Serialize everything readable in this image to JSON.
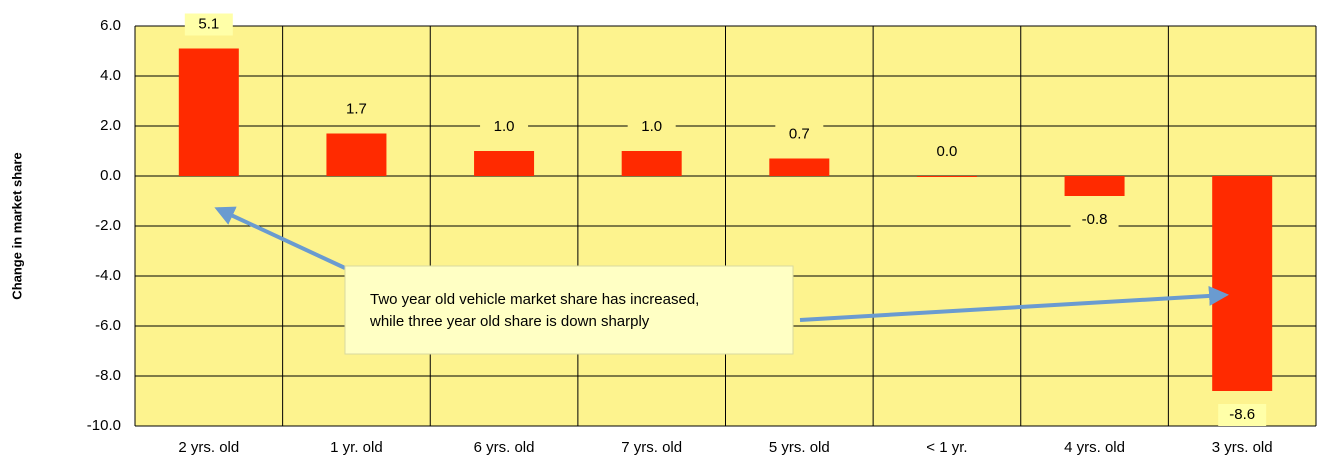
{
  "chart_data": {
    "type": "bar",
    "y_label": "Change in market share",
    "categories": [
      "2 yrs. old",
      "1 yr. old",
      "6 yrs. old",
      "7 yrs. old",
      "5 yrs. old",
      "< 1 yr.",
      "4 yrs. old",
      "3 yrs. old"
    ],
    "values": [
      5.1,
      1.7,
      1.0,
      1.0,
      0.7,
      0.0,
      -0.8,
      -8.6
    ],
    "value_labels": [
      "5.1",
      "1.7",
      "1.0",
      "1.0",
      "0.7",
      "0.0",
      "-0.8",
      "-8.6"
    ],
    "color": "#ff2a00",
    "ylim": [
      -10,
      6
    ],
    "yticks": [
      {
        "value": -10,
        "label": "-10.0"
      },
      {
        "value": -8,
        "label": "-8.0"
      },
      {
        "value": -6,
        "label": "-6.0"
      },
      {
        "value": -4,
        "label": "-4.0"
      },
      {
        "value": -2,
        "label": "-2.0"
      },
      {
        "value": 0,
        "label": "0.0"
      },
      {
        "value": 2,
        "label": "2.0"
      },
      {
        "value": 4,
        "label": "4.0"
      },
      {
        "value": 6,
        "label": "6.0"
      }
    ],
    "grid": true,
    "annotation": [
      "Two year old vehicle market share has increased,",
      "while three year old share is down sharply"
    ]
  }
}
